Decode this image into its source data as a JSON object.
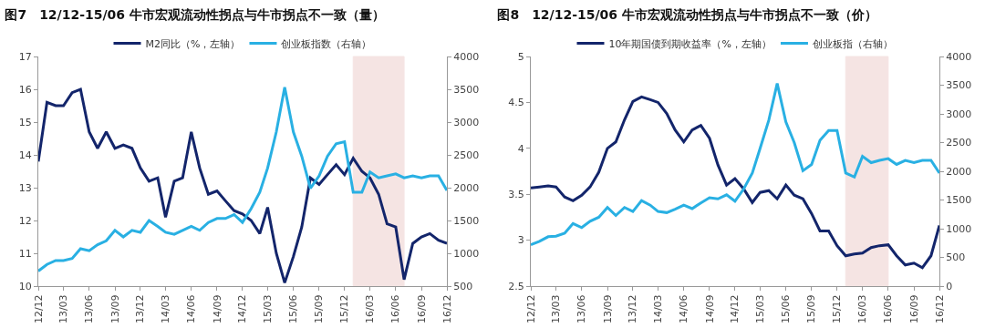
{
  "chart_data": [
    {
      "type": "line",
      "title": "图7　12/12-15/06 牛市宏观流动性拐点与牛市拐点不一致（量）",
      "x": [
        "2012-12",
        "2013-01",
        "2013-02",
        "2013-03",
        "2013-04",
        "2013-05",
        "2013-06",
        "2013-07",
        "2013-08",
        "2013-09",
        "2013-10",
        "2013-11",
        "2013-12",
        "2014-01",
        "2014-02",
        "2014-03",
        "2014-04",
        "2014-05",
        "2014-06",
        "2014-07",
        "2014-08",
        "2014-09",
        "2014-10",
        "2014-11",
        "2014-12",
        "2015-01",
        "2015-02",
        "2015-03",
        "2015-04",
        "2015-05",
        "2015-06",
        "2015-07",
        "2015-08",
        "2015-09",
        "2015-10",
        "2015-11",
        "2015-12",
        "2016-01",
        "2016-02",
        "2016-03",
        "2016-04",
        "2016-05",
        "2016-06",
        "2016-07",
        "2016-08",
        "2016-09",
        "2016-10",
        "2016-11",
        "2016-12"
      ],
      "series": [
        {
          "name": "M2同比（%，左轴）",
          "color": "#13256b",
          "values": [
            13.8,
            15.6,
            15.5,
            15.5,
            15.9,
            16.0,
            14.7,
            14.2,
            14.7,
            14.2,
            14.3,
            14.2,
            13.6,
            13.2,
            13.3,
            12.1,
            13.2,
            13.3,
            14.7,
            13.6,
            12.8,
            12.9,
            12.6,
            12.3,
            12.2,
            12.0,
            11.6,
            12.4,
            11.0,
            10.1,
            10.9,
            11.8,
            13.3,
            13.1,
            13.4,
            13.7,
            13.4,
            13.9,
            13.5,
            13.3,
            12.8,
            11.9,
            11.8,
            10.2,
            11.3,
            11.5,
            11.6,
            11.4,
            11.3
          ]
        },
        {
          "name": "创业板指数（右轴）",
          "color": "#29b0e3",
          "axis": "y2",
          "values": [
            730,
            830,
            890,
            890,
            920,
            1070,
            1040,
            1130,
            1190,
            1350,
            1250,
            1350,
            1320,
            1500,
            1410,
            1320,
            1290,
            1350,
            1410,
            1350,
            1470,
            1530,
            1530,
            1590,
            1470,
            1680,
            1930,
            2300,
            2850,
            3530,
            2850,
            2480,
            1990,
            2180,
            2480,
            2670,
            2700,
            1930,
            1930,
            2240,
            2150,
            2180,
            2210,
            2150,
            2180,
            2150,
            2180,
            2180,
            1960
          ]
        }
      ],
      "xlim": [
        "2012-12",
        "2016-12"
      ],
      "xticks": [
        {
          "value": "2012-12",
          "label": "12/12"
        },
        {
          "value": "2013-03",
          "label": "13/03"
        },
        {
          "value": "2013-06",
          "label": "13/06"
        },
        {
          "value": "2013-09",
          "label": "13/09"
        },
        {
          "value": "2013-12",
          "label": "13/12"
        },
        {
          "value": "2014-03",
          "label": "14/03"
        },
        {
          "value": "2014-06",
          "label": "14/06"
        },
        {
          "value": "2014-09",
          "label": "14/09"
        },
        {
          "value": "2014-12",
          "label": "14/12"
        },
        {
          "value": "2015-03",
          "label": "15/03"
        },
        {
          "value": "2015-06",
          "label": "15/06"
        },
        {
          "value": "2015-09",
          "label": "15/09"
        },
        {
          "value": "2015-12",
          "label": "15/12"
        },
        {
          "value": "2016-03",
          "label": "16/03"
        },
        {
          "value": "2016-06",
          "label": "16/06"
        },
        {
          "value": "2016-09",
          "label": "16/09"
        },
        {
          "value": "2016-12",
          "label": "16/12"
        }
      ],
      "ylim": [
        10,
        17
      ],
      "yticks": [
        10,
        11,
        12,
        13,
        14,
        15,
        16,
        17
      ],
      "y2lim": [
        500,
        4000
      ],
      "y2ticks": [
        500,
        1000,
        1500,
        2000,
        2500,
        3000,
        3500,
        4000
      ],
      "bands": [
        {
          "axis": "x",
          "from": "2016-01",
          "to": "2016-07",
          "color": "#c0504d"
        }
      ],
      "grid": false,
      "legend": "top",
      "line_style": "solid",
      "marker": "none"
    },
    {
      "type": "line",
      "title": "图8　12/12-15/06 牛市宏观流动性拐点与牛市拐点不一致（价）",
      "x": [
        "2012-12",
        "2013-01",
        "2013-02",
        "2013-03",
        "2013-04",
        "2013-05",
        "2013-06",
        "2013-07",
        "2013-08",
        "2013-09",
        "2013-10",
        "2013-11",
        "2013-12",
        "2014-01",
        "2014-02",
        "2014-03",
        "2014-04",
        "2014-05",
        "2014-06",
        "2014-07",
        "2014-08",
        "2014-09",
        "2014-10",
        "2014-11",
        "2014-12",
        "2015-01",
        "2015-02",
        "2015-03",
        "2015-04",
        "2015-05",
        "2015-06",
        "2015-07",
        "2015-08",
        "2015-09",
        "2015-10",
        "2015-11",
        "2015-12",
        "2016-01",
        "2016-02",
        "2016-03",
        "2016-04",
        "2016-05",
        "2016-06",
        "2016-07",
        "2016-08",
        "2016-09",
        "2016-10",
        "2016-11",
        "2016-12"
      ],
      "series": [
        {
          "name": "10年期国债到期收益率（%，左轴）",
          "color": "#13256b",
          "values": [
            3.57,
            3.58,
            3.59,
            3.58,
            3.47,
            3.43,
            3.49,
            3.58,
            3.74,
            4.0,
            4.07,
            4.31,
            4.51,
            4.56,
            4.53,
            4.5,
            4.38,
            4.2,
            4.07,
            4.2,
            4.25,
            4.11,
            3.82,
            3.6,
            3.67,
            3.56,
            3.41,
            3.52,
            3.54,
            3.45,
            3.6,
            3.49,
            3.45,
            3.29,
            3.1,
            3.1,
            2.94,
            2.83,
            2.85,
            2.86,
            2.92,
            2.94,
            2.95,
            2.83,
            2.73,
            2.75,
            2.7,
            2.83,
            3.16
          ]
        },
        {
          "name": "创业板指（右轴）",
          "color": "#29b0e3",
          "axis": "y2",
          "values": [
            720,
            780,
            860,
            870,
            920,
            1090,
            1020,
            1130,
            1200,
            1370,
            1230,
            1370,
            1300,
            1490,
            1410,
            1300,
            1280,
            1340,
            1410,
            1350,
            1450,
            1540,
            1520,
            1590,
            1480,
            1690,
            1970,
            2400,
            2890,
            3530,
            2860,
            2500,
            2010,
            2120,
            2540,
            2710,
            2710,
            1970,
            1900,
            2260,
            2150,
            2190,
            2220,
            2120,
            2190,
            2150,
            2190,
            2190,
            1970
          ]
        }
      ],
      "xlim": [
        "2012-12",
        "2016-12"
      ],
      "xticks": [
        {
          "value": "2012-12",
          "label": "12/12"
        },
        {
          "value": "2013-03",
          "label": "13/03"
        },
        {
          "value": "2013-06",
          "label": "13/06"
        },
        {
          "value": "2013-09",
          "label": "13/09"
        },
        {
          "value": "2013-12",
          "label": "13/12"
        },
        {
          "value": "2014-03",
          "label": "14/03"
        },
        {
          "value": "2014-06",
          "label": "14/06"
        },
        {
          "value": "2014-09",
          "label": "14/09"
        },
        {
          "value": "2014-12",
          "label": "14/12"
        },
        {
          "value": "2015-03",
          "label": "15/03"
        },
        {
          "value": "2015-06",
          "label": "15/06"
        },
        {
          "value": "2015-09",
          "label": "15/09"
        },
        {
          "value": "2015-12",
          "label": "15/12"
        },
        {
          "value": "2016-03",
          "label": "16/03"
        },
        {
          "value": "2016-06",
          "label": "16/06"
        },
        {
          "value": "2016-09",
          "label": "16/09"
        },
        {
          "value": "2016-12",
          "label": "16/12"
        }
      ],
      "ylim": [
        2.5,
        5
      ],
      "yticks": [
        2.5,
        3,
        3.5,
        4,
        4.5,
        5
      ],
      "y2lim": [
        0,
        4000
      ],
      "y2ticks": [
        0,
        500,
        1000,
        1500,
        2000,
        2500,
        3000,
        3500,
        4000
      ],
      "bands": [
        {
          "axis": "x",
          "from": "2016-01",
          "to": "2016-06",
          "color": "#c0504d"
        }
      ],
      "grid": false,
      "legend": "top",
      "line_style": "solid",
      "marker": "none"
    }
  ]
}
